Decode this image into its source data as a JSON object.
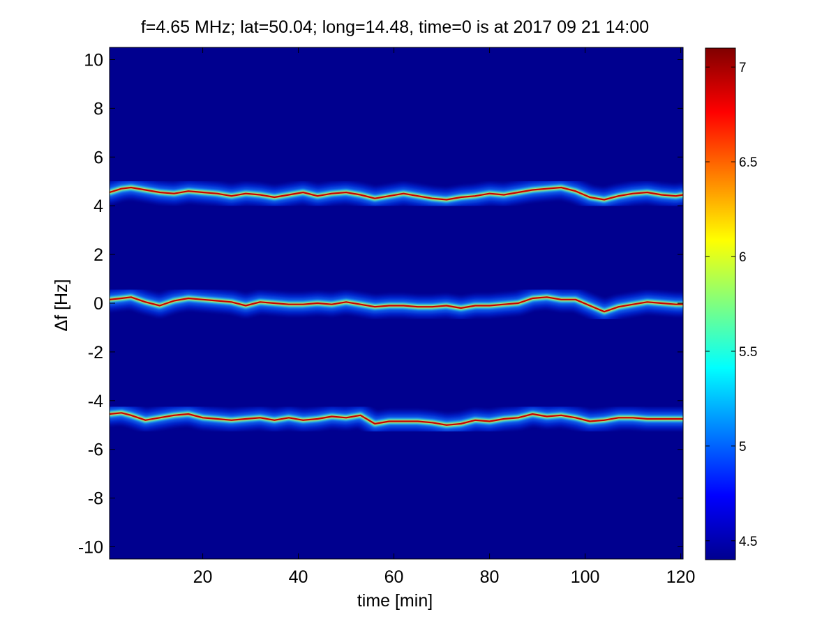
{
  "chart_data": {
    "type": "heatmap",
    "title": "f=4.65 MHz;  lat=50.04; long=14.48, time=0 is at 2017 09 21 14:00",
    "xlabel": "time [min]",
    "ylabel": "Δf [Hz]",
    "xlim": [
      0.5,
      120.5
    ],
    "ylim": [
      -10.5,
      10.5
    ],
    "x_ticks": [
      20,
      40,
      60,
      80,
      100,
      120
    ],
    "y_ticks": [
      10,
      8,
      6,
      4,
      2,
      0,
      -2,
      -4,
      -6,
      -8,
      -10
    ],
    "colorbar": {
      "range": [
        4.4,
        7.1
      ],
      "ticks": [
        4.5,
        5,
        5.5,
        6,
        6.5,
        7
      ],
      "colormap": "jet"
    },
    "background_value": 4.45,
    "series": [
      {
        "x": [
          0.5,
          3,
          5,
          8,
          11,
          14,
          17,
          20,
          23,
          26,
          29,
          32,
          35,
          38,
          41,
          44,
          47,
          50,
          53,
          56,
          59,
          62,
          65,
          68,
          71,
          74,
          77,
          80,
          83,
          86,
          89,
          92,
          95,
          98,
          101,
          104,
          107,
          110,
          113,
          116,
          119,
          120.5
        ],
        "y": [
          4.55,
          4.7,
          4.75,
          4.65,
          4.55,
          4.5,
          4.6,
          4.55,
          4.5,
          4.4,
          4.5,
          4.45,
          4.35,
          4.45,
          4.55,
          4.4,
          4.5,
          4.55,
          4.45,
          4.3,
          4.4,
          4.5,
          4.4,
          4.3,
          4.25,
          4.35,
          4.4,
          4.5,
          4.45,
          4.55,
          4.65,
          4.7,
          4.75,
          4.6,
          4.35,
          4.25,
          4.4,
          4.5,
          4.55,
          4.45,
          4.4,
          4.45
        ]
      },
      {
        "x": [
          0.5,
          3,
          5,
          8,
          11,
          14,
          17,
          20,
          23,
          26,
          29,
          32,
          35,
          38,
          41,
          44,
          47,
          50,
          53,
          56,
          59,
          62,
          65,
          68,
          71,
          74,
          77,
          80,
          83,
          86,
          89,
          92,
          95,
          98,
          101,
          104,
          107,
          110,
          113,
          116,
          119,
          120.5
        ],
        "y": [
          0.15,
          0.2,
          0.25,
          0.05,
          -0.1,
          0.1,
          0.2,
          0.15,
          0.1,
          0.05,
          -0.1,
          0.05,
          0.0,
          -0.05,
          -0.05,
          0.0,
          -0.05,
          0.05,
          -0.05,
          -0.15,
          -0.1,
          -0.1,
          -0.15,
          -0.15,
          -0.1,
          -0.2,
          -0.1,
          -0.1,
          -0.05,
          0.0,
          0.2,
          0.25,
          0.15,
          0.15,
          -0.1,
          -0.35,
          -0.15,
          -0.05,
          0.05,
          0.0,
          -0.05,
          -0.05
        ]
      },
      {
        "x": [
          0.5,
          3,
          5,
          8,
          11,
          14,
          17,
          20,
          23,
          26,
          29,
          32,
          35,
          38,
          41,
          44,
          47,
          50,
          53,
          56,
          59,
          62,
          65,
          68,
          71,
          74,
          77,
          80,
          83,
          86,
          89,
          92,
          95,
          98,
          101,
          104,
          107,
          110,
          113,
          116,
          119,
          120.5
        ],
        "y": [
          -4.55,
          -4.5,
          -4.6,
          -4.8,
          -4.7,
          -4.6,
          -4.55,
          -4.7,
          -4.75,
          -4.8,
          -4.75,
          -4.7,
          -4.8,
          -4.7,
          -4.8,
          -4.75,
          -4.65,
          -4.7,
          -4.6,
          -4.95,
          -4.85,
          -4.85,
          -4.85,
          -4.9,
          -5.0,
          -4.95,
          -4.8,
          -4.85,
          -4.75,
          -4.7,
          -4.55,
          -4.65,
          -4.6,
          -4.7,
          -4.85,
          -4.8,
          -4.7,
          -4.7,
          -4.75,
          -4.75,
          -4.75,
          -4.75
        ]
      }
    ]
  }
}
